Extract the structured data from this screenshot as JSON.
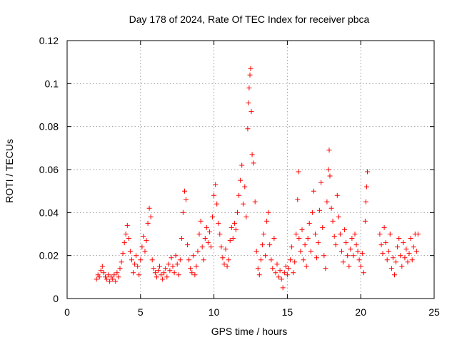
{
  "chart_data": {
    "type": "scatter",
    "title": "Day 178 of 2024, Rate Of TEC Index for receiver pbca",
    "xlabel": "GPS time / hours",
    "ylabel": "ROTI / TECUs",
    "xlim": [
      0,
      25
    ],
    "ylim": [
      0,
      0.12
    ],
    "x_ticks": [
      0,
      5,
      10,
      15,
      20,
      25
    ],
    "y_ticks": [
      0,
      0.02,
      0.04,
      0.06,
      0.08,
      0.1,
      0.12
    ],
    "x_tick_labels": [
      "0",
      "5",
      "10",
      "15",
      "20",
      "25"
    ],
    "y_tick_labels": [
      "0",
      "0.02",
      "0.04",
      "0.06",
      "0.08",
      "0.1",
      "0.12"
    ],
    "grid": true,
    "legend": "none",
    "marker": "+",
    "color": "#ff0000",
    "series": [
      {
        "points": [
          [
            2.0,
            0.009
          ],
          [
            2.1,
            0.011
          ],
          [
            2.2,
            0.01
          ],
          [
            2.3,
            0.013
          ],
          [
            2.4,
            0.015
          ],
          [
            2.5,
            0.012
          ],
          [
            2.6,
            0.01
          ],
          [
            2.7,
            0.009
          ],
          [
            2.8,
            0.011
          ],
          [
            2.9,
            0.008
          ],
          [
            3.0,
            0.01
          ],
          [
            3.1,
            0.009
          ],
          [
            3.2,
            0.011
          ],
          [
            3.3,
            0.008
          ],
          [
            3.4,
            0.012
          ],
          [
            3.5,
            0.01
          ],
          [
            3.6,
            0.014
          ],
          [
            3.7,
            0.017
          ],
          [
            3.8,
            0.021
          ],
          [
            3.9,
            0.026
          ],
          [
            4.0,
            0.03
          ],
          [
            4.1,
            0.034
          ],
          [
            4.2,
            0.028
          ],
          [
            4.3,
            0.022
          ],
          [
            4.4,
            0.018
          ],
          [
            4.5,
            0.012
          ],
          [
            4.6,
            0.016
          ],
          [
            4.7,
            0.02
          ],
          [
            4.8,
            0.015
          ],
          [
            4.9,
            0.011
          ],
          [
            5.0,
            0.018
          ],
          [
            5.1,
            0.024
          ],
          [
            5.2,
            0.029
          ],
          [
            5.3,
            0.022
          ],
          [
            5.4,
            0.027
          ],
          [
            5.5,
            0.035
          ],
          [
            5.6,
            0.042
          ],
          [
            5.7,
            0.038
          ],
          [
            5.8,
            0.018
          ],
          [
            5.9,
            0.014
          ],
          [
            6.0,
            0.012
          ],
          [
            6.1,
            0.01
          ],
          [
            6.2,
            0.013
          ],
          [
            6.3,
            0.015
          ],
          [
            6.4,
            0.011
          ],
          [
            6.5,
            0.009
          ],
          [
            6.6,
            0.012
          ],
          [
            6.7,
            0.014
          ],
          [
            6.8,
            0.01
          ],
          [
            6.9,
            0.016
          ],
          [
            7.0,
            0.013
          ],
          [
            7.1,
            0.019
          ],
          [
            7.2,
            0.015
          ],
          [
            7.3,
            0.012
          ],
          [
            7.4,
            0.02
          ],
          [
            7.5,
            0.016
          ],
          [
            7.6,
            0.011
          ],
          [
            7.7,
            0.018
          ],
          [
            7.8,
            0.028
          ],
          [
            7.9,
            0.04
          ],
          [
            8.0,
            0.05
          ],
          [
            8.1,
            0.046
          ],
          [
            8.2,
            0.025
          ],
          [
            8.3,
            0.018
          ],
          [
            8.4,
            0.014
          ],
          [
            8.5,
            0.012
          ],
          [
            8.6,
            0.02
          ],
          [
            8.7,
            0.011
          ],
          [
            8.8,
            0.015
          ],
          [
            8.9,
            0.022
          ],
          [
            9.0,
            0.03
          ],
          [
            9.1,
            0.036
          ],
          [
            9.2,
            0.024
          ],
          [
            9.3,
            0.018
          ],
          [
            9.4,
            0.028
          ],
          [
            9.5,
            0.033
          ],
          [
            9.6,
            0.026
          ],
          [
            9.7,
            0.031
          ],
          [
            9.8,
            0.024
          ],
          [
            9.9,
            0.038
          ],
          [
            10.0,
            0.048
          ],
          [
            10.1,
            0.053
          ],
          [
            10.2,
            0.044
          ],
          [
            10.3,
            0.035
          ],
          [
            10.4,
            0.03
          ],
          [
            10.5,
            0.024
          ],
          [
            10.6,
            0.019
          ],
          [
            10.7,
            0.016
          ],
          [
            10.8,
            0.023
          ],
          [
            10.9,
            0.015
          ],
          [
            11.0,
            0.018
          ],
          [
            11.1,
            0.027
          ],
          [
            11.2,
            0.033
          ],
          [
            11.3,
            0.028
          ],
          [
            11.4,
            0.035
          ],
          [
            11.5,
            0.032
          ],
          [
            11.6,
            0.04
          ],
          [
            11.7,
            0.048
          ],
          [
            11.8,
            0.055
          ],
          [
            11.9,
            0.062
          ],
          [
            12.0,
            0.044
          ],
          [
            12.1,
            0.052
          ],
          [
            12.2,
            0.038
          ],
          [
            12.3,
            0.079
          ],
          [
            12.35,
            0.091
          ],
          [
            12.4,
            0.098
          ],
          [
            12.45,
            0.104
          ],
          [
            12.5,
            0.107
          ],
          [
            12.55,
            0.087
          ],
          [
            12.6,
            0.067
          ],
          [
            12.7,
            0.063
          ],
          [
            12.8,
            0.045
          ],
          [
            12.9,
            0.022
          ],
          [
            13.0,
            0.014
          ],
          [
            13.1,
            0.011
          ],
          [
            13.2,
            0.018
          ],
          [
            13.3,
            0.025
          ],
          [
            13.4,
            0.03
          ],
          [
            13.5,
            0.02
          ],
          [
            13.6,
            0.036
          ],
          [
            13.7,
            0.04
          ],
          [
            13.8,
            0.025
          ],
          [
            13.9,
            0.018
          ],
          [
            14.0,
            0.014
          ],
          [
            14.1,
            0.028
          ],
          [
            14.2,
            0.012
          ],
          [
            14.3,
            0.016
          ],
          [
            14.4,
            0.01
          ],
          [
            14.5,
            0.013
          ],
          [
            14.6,
            0.009
          ],
          [
            14.7,
            0.005
          ],
          [
            14.8,
            0.012
          ],
          [
            14.9,
            0.015
          ],
          [
            15.0,
            0.011
          ],
          [
            15.1,
            0.014
          ],
          [
            15.2,
            0.018
          ],
          [
            15.3,
            0.024
          ],
          [
            15.4,
            0.012
          ],
          [
            15.5,
            0.017
          ],
          [
            15.6,
            0.03
          ],
          [
            15.7,
            0.046
          ],
          [
            15.75,
            0.059
          ],
          [
            15.8,
            0.028
          ],
          [
            15.9,
            0.022
          ],
          [
            16.0,
            0.032
          ],
          [
            16.1,
            0.018
          ],
          [
            16.2,
            0.025
          ],
          [
            16.3,
            0.015
          ],
          [
            16.4,
            0.028
          ],
          [
            16.5,
            0.035
          ],
          [
            16.6,
            0.022
          ],
          [
            16.7,
            0.04
          ],
          [
            16.8,
            0.05
          ],
          [
            16.9,
            0.03
          ],
          [
            17.0,
            0.019
          ],
          [
            17.1,
            0.026
          ],
          [
            17.2,
            0.041
          ],
          [
            17.3,
            0.054
          ],
          [
            17.4,
            0.033
          ],
          [
            17.5,
            0.02
          ],
          [
            17.6,
            0.014
          ],
          [
            17.7,
            0.045
          ],
          [
            17.8,
            0.06
          ],
          [
            17.85,
            0.069
          ],
          [
            17.9,
            0.057
          ],
          [
            18.0,
            0.042
          ],
          [
            18.1,
            0.036
          ],
          [
            18.2,
            0.029
          ],
          [
            18.3,
            0.025
          ],
          [
            18.4,
            0.048
          ],
          [
            18.5,
            0.038
          ],
          [
            18.6,
            0.03
          ],
          [
            18.7,
            0.022
          ],
          [
            18.8,
            0.017
          ],
          [
            18.9,
            0.032
          ],
          [
            19.0,
            0.026
          ],
          [
            19.1,
            0.02
          ],
          [
            19.2,
            0.015
          ],
          [
            19.3,
            0.023
          ],
          [
            19.4,
            0.028
          ],
          [
            19.5,
            0.02
          ],
          [
            19.6,
            0.03
          ],
          [
            19.7,
            0.025
          ],
          [
            19.8,
            0.022
          ],
          [
            19.9,
            0.018
          ],
          [
            20.0,
            0.015
          ],
          [
            20.1,
            0.021
          ],
          [
            20.2,
            0.012
          ],
          [
            20.3,
            0.036
          ],
          [
            20.35,
            0.045
          ],
          [
            20.4,
            0.052
          ],
          [
            20.45,
            0.059
          ],
          [
            21.3,
            0.03
          ],
          [
            21.4,
            0.025
          ],
          [
            21.5,
            0.021
          ],
          [
            21.6,
            0.033
          ],
          [
            21.7,
            0.026
          ],
          [
            21.8,
            0.018
          ],
          [
            21.9,
            0.022
          ],
          [
            22.0,
            0.03
          ],
          [
            22.1,
            0.014
          ],
          [
            22.2,
            0.019
          ],
          [
            22.3,
            0.011
          ],
          [
            22.4,
            0.017
          ],
          [
            22.5,
            0.024
          ],
          [
            22.6,
            0.028
          ],
          [
            22.7,
            0.02
          ],
          [
            22.8,
            0.015
          ],
          [
            22.9,
            0.026
          ],
          [
            23.0,
            0.019
          ],
          [
            23.1,
            0.023
          ],
          [
            23.2,
            0.017
          ],
          [
            23.3,
            0.021
          ],
          [
            23.4,
            0.028
          ],
          [
            23.5,
            0.018
          ],
          [
            23.6,
            0.024
          ],
          [
            23.7,
            0.03
          ],
          [
            23.8,
            0.022
          ],
          [
            23.9,
            0.03
          ]
        ]
      }
    ]
  }
}
